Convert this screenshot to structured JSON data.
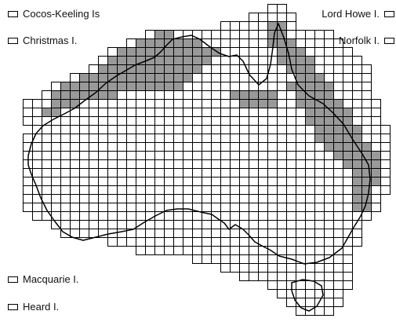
{
  "islands": {
    "cocos": "Cocos-Keeling Is",
    "christmas": "Christmas I.",
    "lord_howe": "Lord Howe I.",
    "norfolk": "Norfolk I.",
    "macquarie": "Macquarie I.",
    "heard": "Heard I."
  },
  "colors": {
    "shaded": "#999999",
    "empty": "#ffffff",
    "grid_line": "#000000",
    "coastline": "#000000"
  }
}
